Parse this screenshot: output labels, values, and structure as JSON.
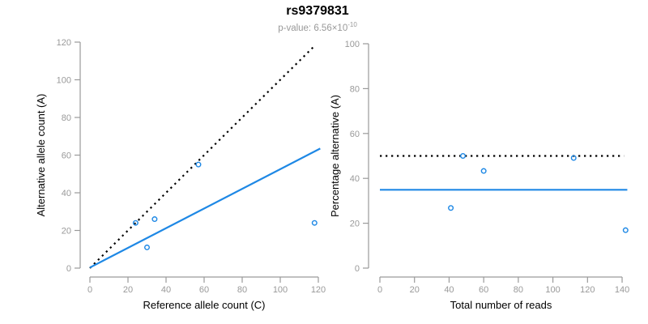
{
  "header": {
    "title": "rs9379831",
    "pvalue_label": "p-value: 6.56×10",
    "pvalue_exponent": "-10"
  },
  "colors": {
    "accent_blue": "#1E88E5",
    "dotted_black": "#000000",
    "axis_gray": "#9a9a9a",
    "tick_label_gray": "#999999",
    "axis_title_black": "#000000",
    "subtitle_gray": "#999999"
  },
  "chart_data": [
    {
      "type": "scatter",
      "panel": "left",
      "xlabel": "Reference allele count (C)",
      "ylabel": "Alternative allele count (A)",
      "xlim": [
        0,
        120
      ],
      "ylim": [
        0,
        120
      ],
      "xticks": [
        0,
        20,
        40,
        60,
        80,
        100,
        120
      ],
      "yticks": [
        0,
        20,
        40,
        60,
        80,
        100,
        120
      ],
      "grid": false,
      "points": [
        [
          24,
          24
        ],
        [
          30,
          11
        ],
        [
          34,
          26
        ],
        [
          57,
          55
        ],
        [
          118,
          24
        ]
      ],
      "lines": [
        {
          "name": "identity-line",
          "style": "dotted",
          "color": "#000000",
          "from": [
            0,
            0
          ],
          "to": [
            118,
            118
          ]
        },
        {
          "name": "fit-line",
          "style": "solid",
          "color": "#1E88E5",
          "from": [
            0,
            0.3
          ],
          "to": [
            121,
            63.5
          ]
        }
      ]
    },
    {
      "type": "scatter",
      "panel": "right",
      "xlabel": "Total number of reads",
      "ylabel": "Percentage alternative (A)",
      "xlim": [
        0,
        140
      ],
      "ylim": [
        0,
        100
      ],
      "xticks": [
        0,
        20,
        40,
        60,
        80,
        100,
        120,
        140
      ],
      "yticks": [
        0,
        20,
        40,
        60,
        80,
        100
      ],
      "grid": false,
      "points": [
        [
          41,
          26.8
        ],
        [
          48,
          50
        ],
        [
          60,
          43.3
        ],
        [
          112,
          49.1
        ],
        [
          142,
          16.9
        ]
      ],
      "lines": [
        {
          "name": "expected-50-line",
          "style": "dotted",
          "color": "#000000",
          "from": [
            0,
            50
          ],
          "to": [
            141,
            50
          ]
        },
        {
          "name": "mean-percentage-line",
          "style": "solid",
          "color": "#1E88E5",
          "from": [
            0,
            34.9
          ],
          "to": [
            143,
            34.9
          ]
        }
      ]
    }
  ]
}
